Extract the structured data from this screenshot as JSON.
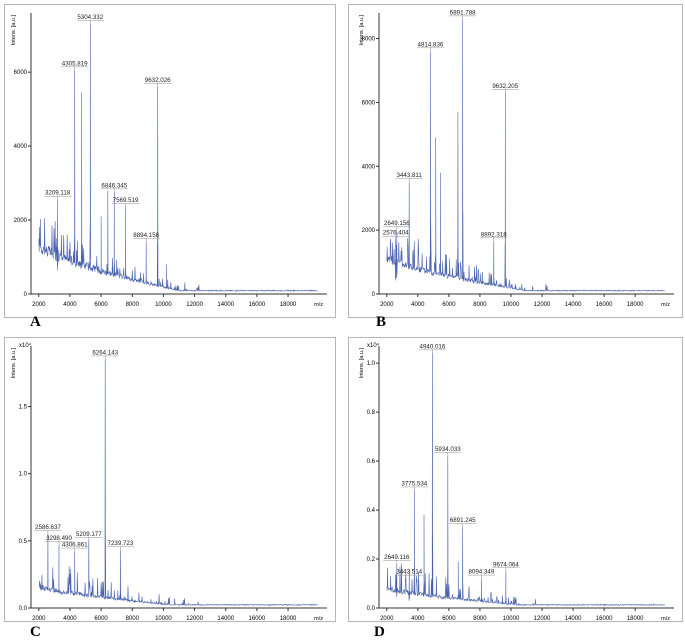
{
  "colors": {
    "spectrum": "#4a62ad",
    "axis": "#333333",
    "label": "#222222",
    "frame": "#b5b5b5"
  },
  "chart_data": [
    {
      "panel_letter": "A",
      "type": "line",
      "xlabel": "m/z",
      "ylabel": "Intens. [a.u.]",
      "y_exponent": "",
      "xlim": [
        1500,
        20500
      ],
      "ylim": [
        0,
        7600
      ],
      "x_ticks": [
        2000,
        4000,
        6000,
        8000,
        10000,
        12000,
        14000,
        16000,
        18000
      ],
      "x_tick_labels": [
        "2000",
        "4000",
        "6000",
        "8000",
        "10000",
        "12000",
        "14000",
        "16000",
        "18000"
      ],
      "y_ticks": [
        0,
        2000,
        4000,
        6000
      ],
      "y_tick_labels": [
        "0",
        "2000",
        "4000",
        "6000"
      ],
      "baseline": {
        "start": 1250,
        "end_x": 11000
      },
      "peaks": [
        {
          "x": 3209.118,
          "y": 2550,
          "label": "3209.118"
        },
        {
          "x": 4305.819,
          "y": 6050,
          "label": "4305.819"
        },
        {
          "x": 4750,
          "y": 5450,
          "label": ""
        },
        {
          "x": 5304.332,
          "y": 7300,
          "label": "5304.332"
        },
        {
          "x": 6000,
          "y": 2100,
          "label": ""
        },
        {
          "x": 6430,
          "y": 2800,
          "label": ""
        },
        {
          "x": 6846.345,
          "y": 2750,
          "label": "6846.345"
        },
        {
          "x": 7569.519,
          "y": 2350,
          "label": "7569.519"
        },
        {
          "x": 8894.158,
          "y": 1400,
          "label": "8894.158"
        },
        {
          "x": 9632.026,
          "y": 5600,
          "label": "9632.026"
        },
        {
          "x": 10200,
          "y": 800,
          "label": ""
        }
      ]
    },
    {
      "panel_letter": "B",
      "type": "line",
      "xlabel": "m/z",
      "ylabel": "Intens. [a.u.]",
      "y_exponent": "",
      "xlim": [
        1500,
        20500
      ],
      "ylim": [
        0,
        8800
      ],
      "x_ticks": [
        2000,
        4000,
        6000,
        8000,
        10000,
        12000,
        14000,
        16000,
        18000
      ],
      "x_tick_labels": [
        "2000",
        "4000",
        "6000",
        "8000",
        "10000",
        "12000",
        "14000",
        "16000",
        "18000"
      ],
      "y_ticks": [
        0,
        2000,
        4000,
        6000,
        8000
      ],
      "y_tick_labels": [
        "0",
        "2000",
        "4000",
        "6000",
        "8000"
      ],
      "baseline": {
        "start": 1050,
        "end_x": 11000
      },
      "peaks": [
        {
          "x": 2649.156,
          "y": 2000,
          "label": "2649.156"
        },
        {
          "x": 2576.404,
          "y": 1700,
          "label": "2576.404"
        },
        {
          "x": 3443.811,
          "y": 3500,
          "label": "3443.811"
        },
        {
          "x": 4814.836,
          "y": 7600,
          "label": "4814.836"
        },
        {
          "x": 5150,
          "y": 4900,
          "label": ""
        },
        {
          "x": 5450,
          "y": 3800,
          "label": ""
        },
        {
          "x": 6580,
          "y": 5700,
          "label": ""
        },
        {
          "x": 6891.788,
          "y": 8600,
          "label": "6891.788"
        },
        {
          "x": 8892.318,
          "y": 1650,
          "label": "8892.318"
        },
        {
          "x": 9632.205,
          "y": 6300,
          "label": "9632.205"
        }
      ]
    },
    {
      "panel_letter": "C",
      "type": "line",
      "xlabel": "m/z",
      "ylabel": "Intens. [a.u.]",
      "y_exponent": "x10⁴",
      "xlim": [
        1500,
        20500
      ],
      "ylim": [
        0,
        1.95
      ],
      "x_ticks": [
        2000,
        4000,
        6000,
        8000,
        10000,
        12000,
        14000,
        16000,
        18000
      ],
      "x_tick_labels": [
        "2000",
        "4000",
        "6000",
        "8000",
        "10000",
        "12000",
        "14000",
        "16000",
        "18000"
      ],
      "y_ticks": [
        0.0,
        0.5,
        1.0,
        1.5
      ],
      "y_tick_labels": [
        "0.0",
        "0.5",
        "1.0",
        "1.5"
      ],
      "baseline": {
        "start": 0.14,
        "end_x": 10500
      },
      "peaks": [
        {
          "x": 2586.637,
          "y": 0.55,
          "label": "2586.637"
        },
        {
          "x": 3298.49,
          "y": 0.47,
          "label": "3298.490"
        },
        {
          "x": 4306.861,
          "y": 0.42,
          "label": "4306.861"
        },
        {
          "x": 5209.177,
          "y": 0.5,
          "label": "5209.177"
        },
        {
          "x": 6264.143,
          "y": 1.85,
          "label": "6264.143"
        },
        {
          "x": 7239.723,
          "y": 0.43,
          "label": "7239.723"
        }
      ]
    },
    {
      "panel_letter": "D",
      "type": "line",
      "xlabel": "m/z",
      "ylabel": "Intens. [a.u.]",
      "y_exponent": "x10⁴",
      "xlim": [
        1500,
        20500
      ],
      "ylim": [
        0,
        1.07
      ],
      "x_ticks": [
        2000,
        4000,
        6000,
        8000,
        10000,
        12000,
        14000,
        16000,
        18000
      ],
      "x_tick_labels": [
        "2000",
        "4000",
        "6000",
        "8000",
        "10000",
        "12000",
        "14000",
        "16000",
        "18000"
      ],
      "y_ticks": [
        0.0,
        0.2,
        0.4,
        0.6,
        0.8,
        1.0
      ],
      "y_tick_labels": [
        "0.0",
        "0.2",
        "0.4",
        "0.6",
        "0.8",
        "1.0"
      ],
      "baseline": {
        "start": 0.07,
        "end_x": 10500
      },
      "peaks": [
        {
          "x": 2649.116,
          "y": 0.18,
          "label": "2649.116"
        },
        {
          "x": 3443.514,
          "y": 0.12,
          "label": "3443.514"
        },
        {
          "x": 3775.534,
          "y": 0.48,
          "label": "3775.534"
        },
        {
          "x": 4400,
          "y": 0.38,
          "label": ""
        },
        {
          "x": 4940.016,
          "y": 1.04,
          "label": "4940.016"
        },
        {
          "x": 5934.033,
          "y": 0.62,
          "label": "5934.033"
        },
        {
          "x": 6600,
          "y": 0.19,
          "label": ""
        },
        {
          "x": 6891.245,
          "y": 0.33,
          "label": "6891.245"
        },
        {
          "x": 8094.349,
          "y": 0.12,
          "label": "8094.349"
        },
        {
          "x": 9674.064,
          "y": 0.15,
          "label": "9674.064"
        }
      ]
    }
  ]
}
